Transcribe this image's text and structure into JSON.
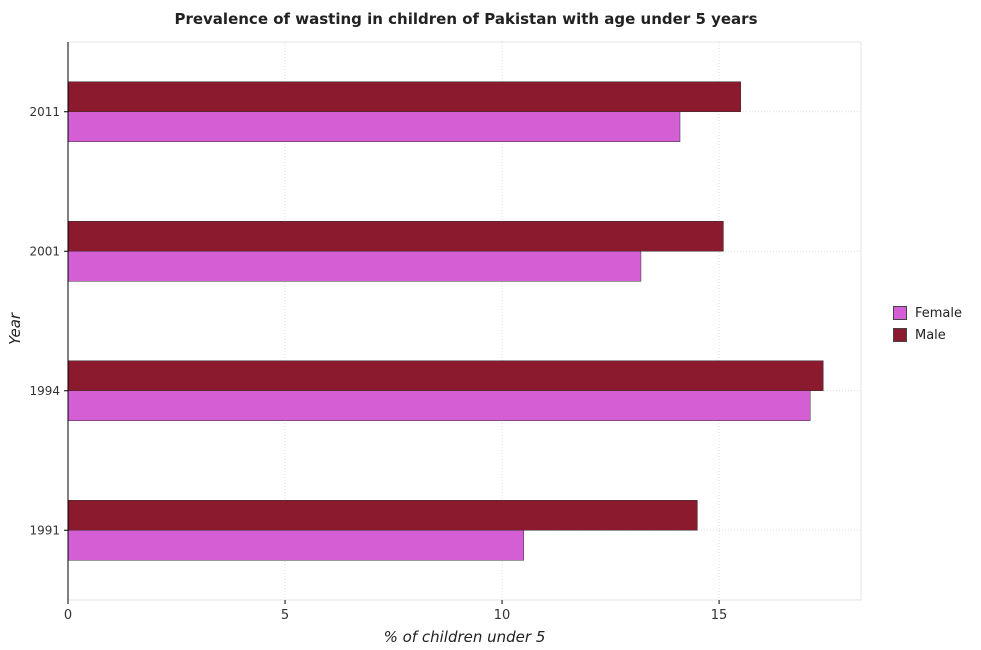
{
  "chart_data": {
    "type": "bar",
    "orientation": "horizontal",
    "title": "Prevalence of wasting in children of Pakistan with age under 5 years",
    "xlabel": "% of children under 5",
    "ylabel": "Year",
    "categories": [
      "1991",
      "1994",
      "2001",
      "2011"
    ],
    "series": [
      {
        "name": "Female",
        "color": "#d45ed4",
        "values": [
          10.5,
          17.1,
          13.2,
          14.1
        ]
      },
      {
        "name": "Male",
        "color": "#8b1a2e",
        "values": [
          14.5,
          17.4,
          15.1,
          15.5
        ]
      }
    ],
    "xlim": [
      0,
      18.27
    ],
    "xticks": [
      0,
      5,
      10,
      15
    ],
    "grid": true,
    "legend_position": "right"
  }
}
